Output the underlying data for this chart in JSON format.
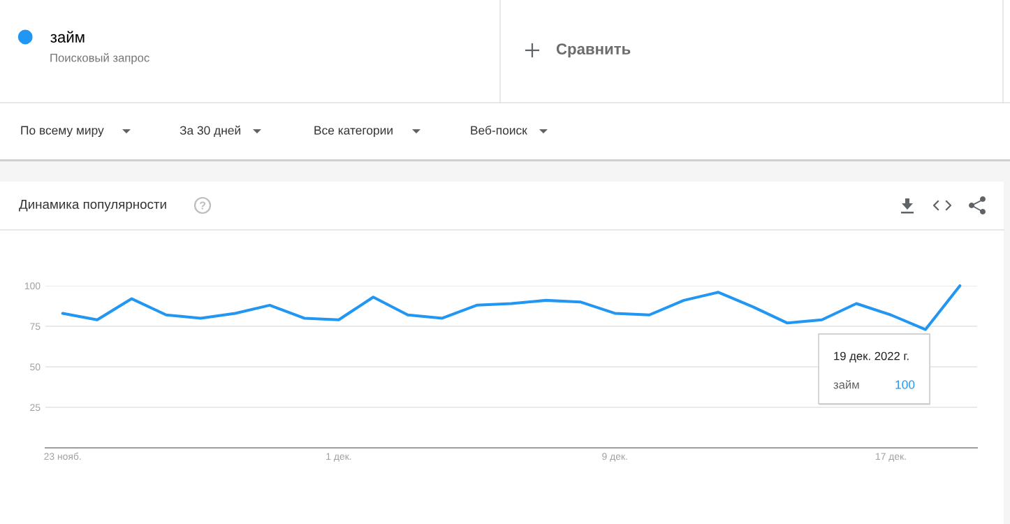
{
  "chart_data": {
    "type": "line",
    "title": "Динамика популярности",
    "x": [
      "2022-11-23",
      "2022-11-24",
      "2022-11-25",
      "2022-11-26",
      "2022-11-27",
      "2022-11-28",
      "2022-11-29",
      "2022-11-30",
      "2022-12-01",
      "2022-12-02",
      "2022-12-03",
      "2022-12-04",
      "2022-12-05",
      "2022-12-06",
      "2022-12-07",
      "2022-12-08",
      "2022-12-09",
      "2022-12-10",
      "2022-12-11",
      "2022-12-12",
      "2022-12-13",
      "2022-12-14",
      "2022-12-15",
      "2022-12-16",
      "2022-12-17",
      "2022-12-18",
      "2022-12-19"
    ],
    "series": [
      {
        "name": "займ",
        "color": "#2196f3",
        "values": [
          83,
          79,
          92,
          82,
          80,
          83,
          88,
          80,
          79,
          93,
          82,
          80,
          88,
          89,
          91,
          90,
          83,
          82,
          91,
          96,
          87,
          77,
          79,
          89,
          82,
          73,
          100
        ]
      }
    ],
    "xlim": [
      "2022-11-22T12:00",
      "2022-12-19T12:00"
    ],
    "xticks": [
      {
        "value": "2022-11-23",
        "label": "23 нояб."
      },
      {
        "value": "2022-12-01",
        "label": "1 дек."
      },
      {
        "value": "2022-12-09",
        "label": "9 дек."
      },
      {
        "value": "2022-12-17",
        "label": "17 дек."
      }
    ],
    "ylim": [
      0,
      100
    ],
    "yticks": [
      25,
      50,
      75,
      100
    ],
    "grid": "y",
    "legend": "top left",
    "line_style": "solid",
    "annotations": [
      "Поисковый запрос",
      "Сравнить",
      "По всему миру",
      "За 30 дней",
      "Все категории",
      "Веб-поиск",
      "19 дек. 2022 г.",
      "займ",
      "100"
    ]
  }
}
